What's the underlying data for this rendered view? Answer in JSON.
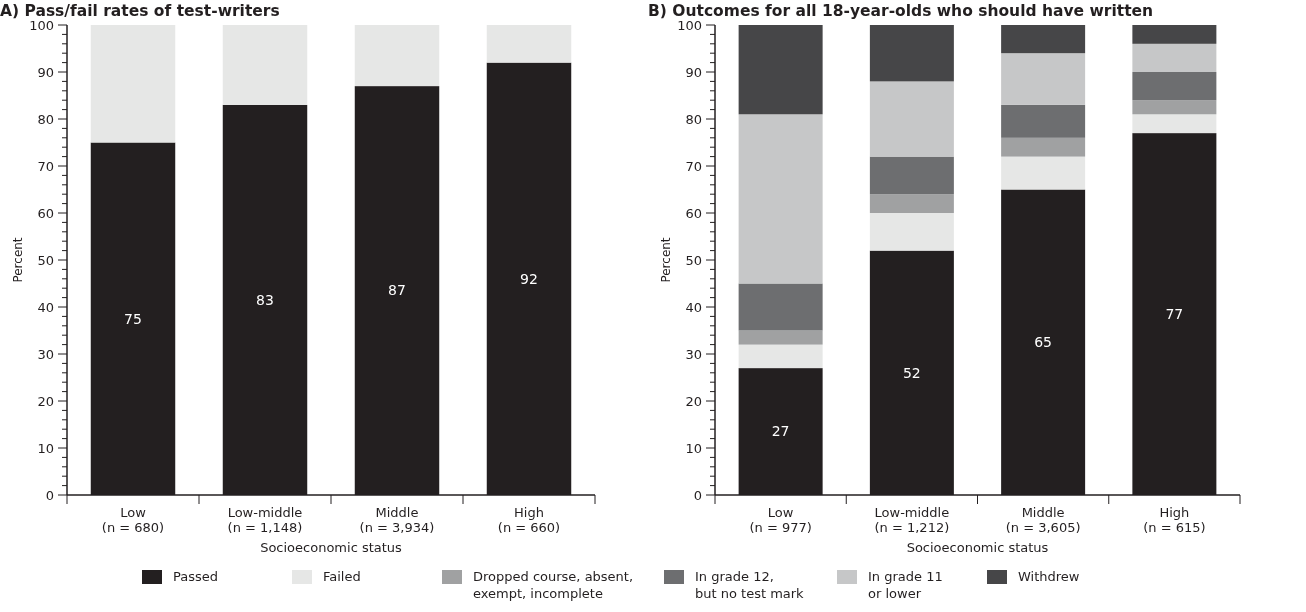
{
  "chart_data": [
    {
      "type": "bar",
      "stacked": true,
      "title": "A) Pass/fail rates of test-writers",
      "xlabel": "Socioeconomic status",
      "ylabel": "Percent",
      "categories": [
        "Low (n = 680)",
        "Low-middle (n = 1,148)",
        "Middle (n = 3,934)",
        "High (n = 660)"
      ],
      "series": [
        {
          "color": "#231f20",
          "values": [
            75,
            83,
            87,
            92
          ],
          "value_labels": [
            "75",
            "83",
            "87",
            "92"
          ]
        },
        {
          "color": "#e6e7e6",
          "values": [
            25,
            17,
            13,
            8
          ]
        }
      ],
      "ylim": [
        0,
        100
      ],
      "yticks": [
        0,
        {
          "value": 2,
          "label": null
        },
        {
          "value": 4,
          "label": null
        },
        {
          "value": 6,
          "label": null
        },
        {
          "value": 8,
          "label": null
        },
        10,
        {
          "value": 12,
          "label": null
        },
        {
          "value": 14,
          "label": null
        },
        {
          "value": 16,
          "label": null
        },
        {
          "value": 18,
          "label": null
        },
        20,
        {
          "value": 22,
          "label": null
        },
        {
          "value": 24,
          "label": null
        },
        {
          "value": 26,
          "label": null
        },
        {
          "value": 28,
          "label": null
        },
        30,
        {
          "value": 32,
          "label": null
        },
        {
          "value": 34,
          "label": null
        },
        {
          "value": 36,
          "label": null
        },
        {
          "value": 38,
          "label": null
        },
        40,
        {
          "value": 42,
          "label": null
        },
        {
          "value": 44,
          "label": null
        },
        {
          "value": 46,
          "label": null
        },
        {
          "value": 48,
          "label": null
        },
        50,
        {
          "value": 52,
          "label": null
        },
        {
          "value": 54,
          "label": null
        },
        {
          "value": 56,
          "label": null
        },
        {
          "value": 58,
          "label": null
        },
        60,
        {
          "value": 62,
          "label": null
        },
        {
          "value": 64,
          "label": null
        },
        {
          "value": 66,
          "label": null
        },
        {
          "value": 68,
          "label": null
        },
        70,
        {
          "value": 72,
          "label": null
        },
        {
          "value": 74,
          "label": null
        },
        {
          "value": 76,
          "label": null
        },
        {
          "value": 78,
          "label": null
        },
        80,
        {
          "value": 82,
          "label": null
        },
        {
          "value": 84,
          "label": null
        },
        {
          "value": 86,
          "label": null
        },
        {
          "value": 88,
          "label": null
        },
        90,
        {
          "value": 92,
          "label": null
        },
        {
          "value": 94,
          "label": null
        },
        {
          "value": 96,
          "label": null
        },
        {
          "value": 98,
          "label": null
        },
        100
      ]
    },
    {
      "type": "bar",
      "stacked": true,
      "title": "B) Outcomes for all 18-year-olds who should have written",
      "xlabel": "Socioeconomic status",
      "ylabel": "Percent",
      "legend": "bottom",
      "categories": [
        "Low (n = 977)",
        "Low-middle (n = 1,212)",
        "Middle (n = 3,605)",
        "High (n = 615)"
      ],
      "series": [
        {
          "name": "Passed",
          "color": "#231f20",
          "values": [
            27,
            52,
            65,
            77
          ],
          "value_labels": [
            "27",
            "52",
            "65",
            "77"
          ]
        },
        {
          "name": "Failed",
          "color": "#e6e7e6",
          "values": [
            5,
            8,
            7,
            4
          ]
        },
        {
          "name": "Dropped course, absent, exempt, incomplete",
          "color": "#a0a1a2",
          "values": [
            3,
            4,
            4,
            3
          ]
        },
        {
          "name": "In grade 12, but no test mark",
          "color": "#6d6e70",
          "values": [
            10,
            8,
            7,
            6
          ]
        },
        {
          "name": "In grade 11 or lower",
          "color": "#c6c7c8",
          "values": [
            36,
            16,
            11,
            6
          ]
        },
        {
          "name": "Withdrew",
          "color": "#464648",
          "values": [
            19,
            12,
            6,
            4
          ]
        }
      ],
      "ylim": [
        0,
        100
      ],
      "yticks": [
        0,
        {
          "value": 2,
          "label": null
        },
        {
          "value": 4,
          "label": null
        },
        {
          "value": 6,
          "label": null
        },
        {
          "value": 8,
          "label": null
        },
        10,
        {
          "value": 12,
          "label": null
        },
        {
          "value": 14,
          "label": null
        },
        {
          "value": 16,
          "label": null
        },
        {
          "value": 18,
          "label": null
        },
        20,
        {
          "value": 22,
          "label": null
        },
        {
          "value": 24,
          "label": null
        },
        {
          "value": 26,
          "label": null
        },
        {
          "value": 28,
          "label": null
        },
        30,
        {
          "value": 32,
          "label": null
        },
        {
          "value": 34,
          "label": null
        },
        {
          "value": 36,
          "label": null
        },
        {
          "value": 38,
          "label": null
        },
        40,
        {
          "value": 42,
          "label": null
        },
        {
          "value": 44,
          "label": null
        },
        {
          "value": 46,
          "label": null
        },
        {
          "value": 48,
          "label": null
        },
        50,
        {
          "value": 52,
          "label": null
        },
        {
          "value": 54,
          "label": null
        },
        {
          "value": 56,
          "label": null
        },
        {
          "value": 58,
          "label": null
        },
        60,
        {
          "value": 62,
          "label": null
        },
        {
          "value": 64,
          "label": null
        },
        {
          "value": 66,
          "label": null
        },
        {
          "value": 68,
          "label": null
        },
        70,
        {
          "value": 72,
          "label": null
        },
        {
          "value": 74,
          "label": null
        },
        {
          "value": 76,
          "label": null
        },
        {
          "value": 78,
          "label": null
        },
        80,
        {
          "value": 82,
          "label": null
        },
        {
          "value": 84,
          "label": null
        },
        {
          "value": 86,
          "label": null
        },
        {
          "value": 88,
          "label": null
        },
        90,
        {
          "value": 92,
          "label": null
        },
        {
          "value": 94,
          "label": null
        },
        {
          "value": 96,
          "label": null
        },
        {
          "value": 98,
          "label": null
        },
        100
      ]
    }
  ]
}
